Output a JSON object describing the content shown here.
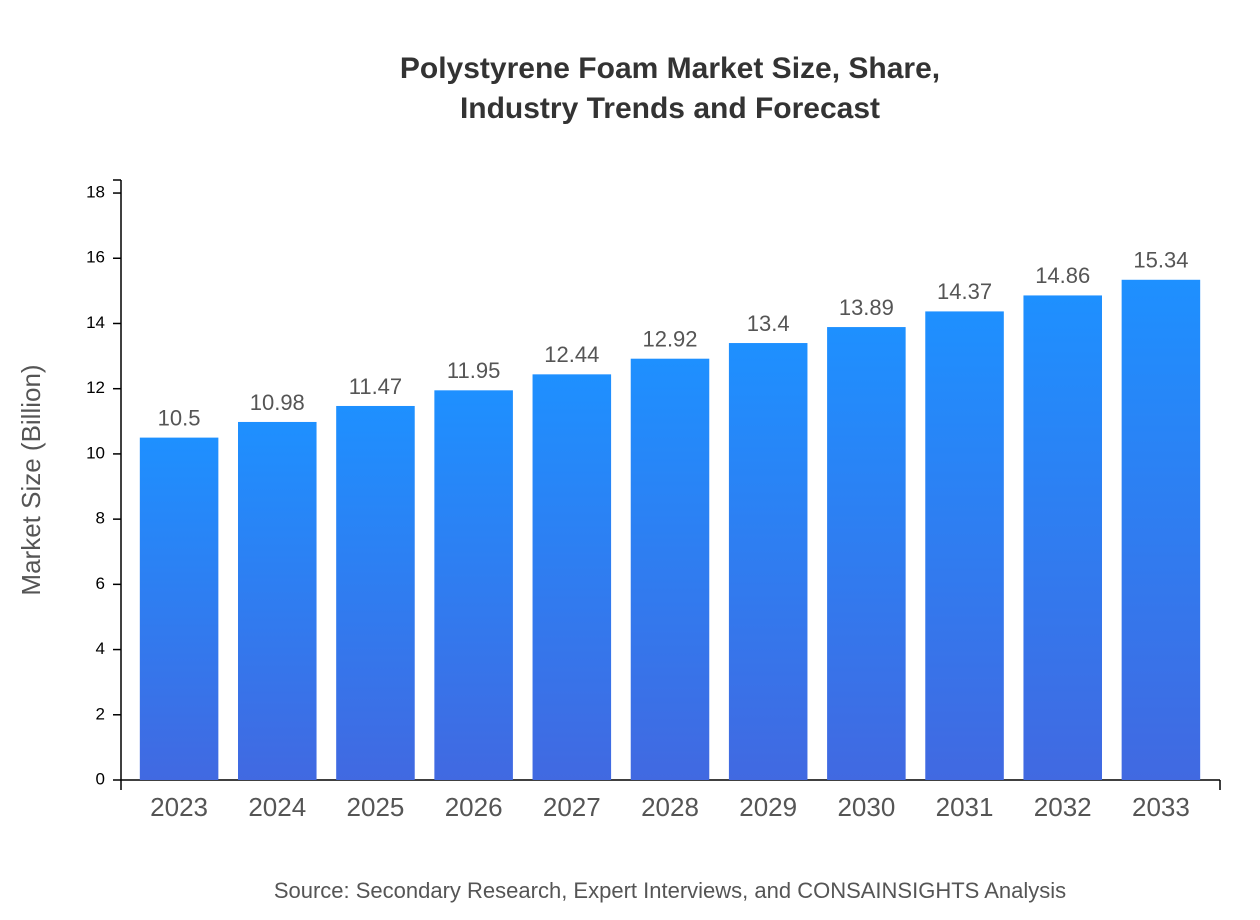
{
  "chart_data": {
    "type": "bar",
    "title": [
      "Polystyrene Foam Market Size, Share,",
      "Industry Trends and Forecast"
    ],
    "y_label": "Market Size (Billion)",
    "source": "Source: Secondary Research, Expert Interviews, and CONSAINSIGHTS Analysis",
    "categories": [
      "2023",
      "2024",
      "2025",
      "2026",
      "2027",
      "2028",
      "2029",
      "2030",
      "2031",
      "2032",
      "2033"
    ],
    "values": [
      10.5,
      10.98,
      11.47,
      11.95,
      12.44,
      12.92,
      13.4,
      13.89,
      14.37,
      14.86,
      15.34
    ],
    "gradient": [
      "#1e90ff",
      "#4169e1"
    ],
    "ylim": [
      0,
      18.4
    ],
    "yticks": [
      0,
      2,
      4,
      6,
      8,
      10,
      12,
      14,
      16,
      18
    ],
    "grid": false
  }
}
